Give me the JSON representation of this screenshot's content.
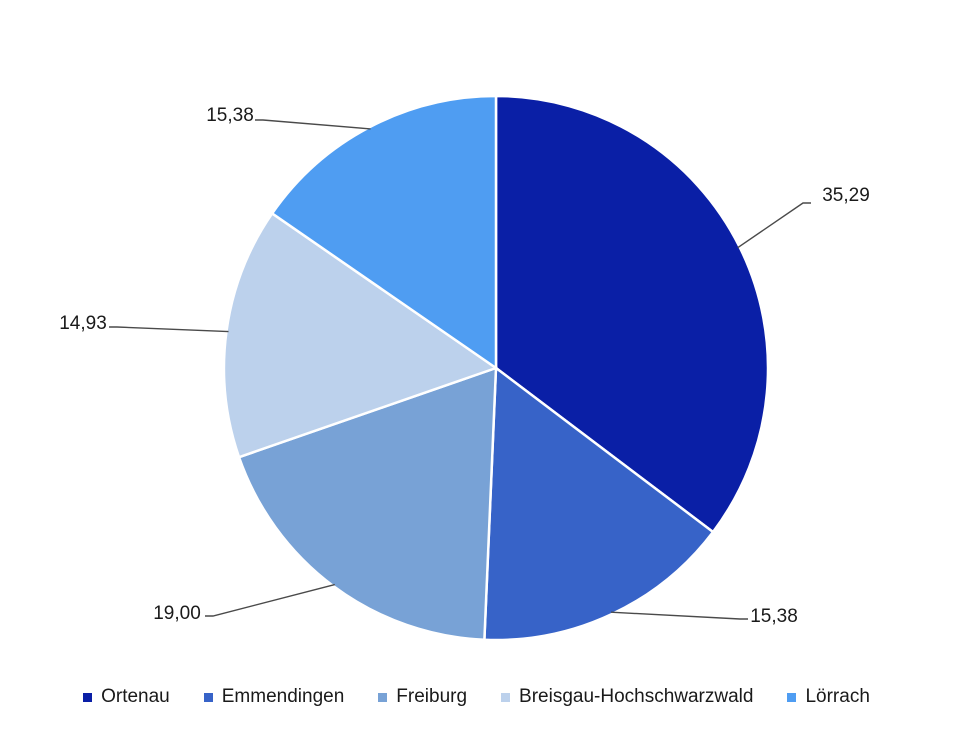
{
  "chart_data": {
    "type": "pie",
    "title": "",
    "slices": [
      {
        "name": "Ortenau",
        "value": 35.29,
        "label": "35,29",
        "color": "#0a1fa6"
      },
      {
        "name": "Emmendingen",
        "value": 15.38,
        "label": "15,38",
        "color": "#3763c8"
      },
      {
        "name": "Freiburg",
        "value": 19.0,
        "label": "19,00",
        "color": "#78a2d6"
      },
      {
        "name": "Breisgau-Hochschwarzwald",
        "value": 14.93,
        "label": "14,93",
        "color": "#bcd1ec"
      },
      {
        "name": "Lörrach",
        "value": 15.38,
        "label": "15,38",
        "color": "#4f9df2"
      }
    ],
    "start_angle": "12 o'clock",
    "direction": "clockwise",
    "legend_position": "bottom"
  }
}
